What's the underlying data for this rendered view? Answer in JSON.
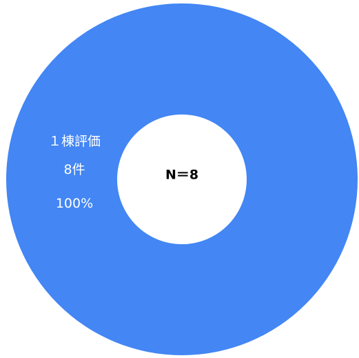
{
  "chart_data": {
    "type": "pie",
    "categories": [
      "１棟評価"
    ],
    "values": [
      8
    ],
    "slice_labels": [
      {
        "category": "１棟評価",
        "count": "8件",
        "percent": "100%"
      }
    ],
    "center_label": "N＝8",
    "colors": [
      "#4386f4"
    ],
    "hole_color": "#ffffff"
  }
}
